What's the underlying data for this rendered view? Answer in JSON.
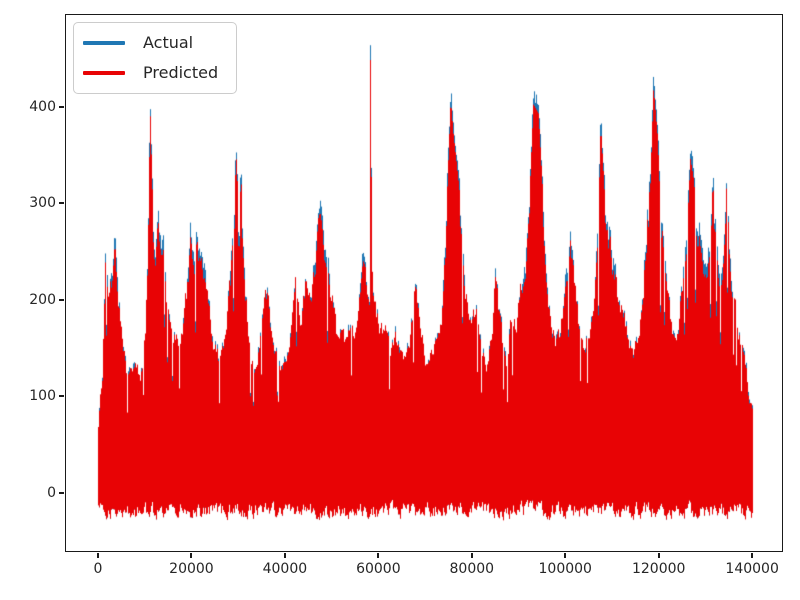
{
  "figure": {
    "background": "#ffffff",
    "text_color": "#262626",
    "spine_color": "#1a1a1a"
  },
  "legend": {
    "position": "upper left",
    "entries": [
      {
        "label": "Actual",
        "color": "#1f77b4",
        "sample": "line"
      },
      {
        "label": "Predicted",
        "color": "#e80305",
        "sample": "line"
      }
    ]
  },
  "chart_data": {
    "type": "line",
    "title": "",
    "xlabel": "",
    "ylabel": "",
    "grid": false,
    "legend_position": "upper left",
    "xlim": [
      -7060,
      146600
    ],
    "ylim": [
      -61,
      496
    ],
    "x_range": [
      0,
      140000
    ],
    "x_ticks": [
      0,
      20000,
      40000,
      60000,
      80000,
      100000,
      120000,
      140000
    ],
    "x_tick_labels": [
      "0",
      "20000",
      "40000",
      "60000",
      "80000",
      "100000",
      "120000",
      "140000"
    ],
    "y_ticks": [
      0,
      100,
      200,
      300,
      400
    ],
    "y_tick_labels": [
      "0",
      "100",
      "200",
      "300",
      "400"
    ],
    "series": [
      {
        "name": "Actual",
        "color": "#1f77b4",
        "role": "actual",
        "description": "dense noisy series; visible as thin tips above Predicted at peaks",
        "peak_excess_range": [
          5,
          16
        ],
        "shoulder_excess_range": [
          2,
          6
        ]
      },
      {
        "name": "Predicted",
        "color": "#e80305",
        "role": "predicted",
        "description": "dense noisy series overlaying Actual almost everywhere"
      }
    ],
    "noise_floor_range": [
      -32,
      -4
    ],
    "envelope_upper": [
      [
        0,
        75
      ],
      [
        400,
        112
      ],
      [
        900,
        132
      ],
      [
        1500,
        271
      ],
      [
        2200,
        222
      ],
      [
        3000,
        252
      ],
      [
        3600,
        277
      ],
      [
        4200,
        232
      ],
      [
        5000,
        182
      ],
      [
        6000,
        142
      ],
      [
        7000,
        136
      ],
      [
        8000,
        152
      ],
      [
        9000,
        133
      ],
      [
        10000,
        172
      ],
      [
        10700,
        300
      ],
      [
        11100,
        408
      ],
      [
        11500,
        332
      ],
      [
        12100,
        252
      ],
      [
        12800,
        295
      ],
      [
        13500,
        268
      ],
      [
        13900,
        290
      ],
      [
        14800,
        212
      ],
      [
        16000,
        178
      ],
      [
        17000,
        172
      ],
      [
        18000,
        196
      ],
      [
        19000,
        236
      ],
      [
        19700,
        282
      ],
      [
        20400,
        240
      ],
      [
        21200,
        285
      ],
      [
        22000,
        258
      ],
      [
        22900,
        250
      ],
      [
        23800,
        206
      ],
      [
        24800,
        166
      ],
      [
        26000,
        150
      ],
      [
        27000,
        178
      ],
      [
        28200,
        236
      ],
      [
        29000,
        302
      ],
      [
        29500,
        360
      ],
      [
        30000,
        306
      ],
      [
        30600,
        330
      ],
      [
        31500,
        236
      ],
      [
        32500,
        152
      ],
      [
        33500,
        146
      ],
      [
        34500,
        163
      ],
      [
        35700,
        237
      ],
      [
        36500,
        215
      ],
      [
        37500,
        158
      ],
      [
        39000,
        148
      ],
      [
        40500,
        152
      ],
      [
        41500,
        196
      ],
      [
        42400,
        245
      ],
      [
        43300,
        206
      ],
      [
        44300,
        240
      ],
      [
        45500,
        216
      ],
      [
        46300,
        256
      ],
      [
        47100,
        298
      ],
      [
        47900,
        305
      ],
      [
        48800,
        262
      ],
      [
        50000,
        226
      ],
      [
        51000,
        184
      ],
      [
        52000,
        186
      ],
      [
        53000,
        170
      ],
      [
        53900,
        186
      ],
      [
        55000,
        178
      ],
      [
        56500,
        265
      ],
      [
        57300,
        238
      ],
      [
        58000,
        206
      ],
      [
        58200,
        470
      ],
      [
        58600,
        236
      ],
      [
        59500,
        206
      ],
      [
        60500,
        186
      ],
      [
        61400,
        188
      ],
      [
        62500,
        156
      ],
      [
        63500,
        182
      ],
      [
        64500,
        158
      ],
      [
        65500,
        152
      ],
      [
        66500,
        164
      ],
      [
        67800,
        240
      ],
      [
        68800,
        196
      ],
      [
        70000,
        152
      ],
      [
        71500,
        162
      ],
      [
        72500,
        188
      ],
      [
        73500,
        212
      ],
      [
        74500,
        302
      ],
      [
        75400,
        420
      ],
      [
        76000,
        382
      ],
      [
        76600,
        355
      ],
      [
        77500,
        312
      ],
      [
        78500,
        236
      ],
      [
        79500,
        188
      ],
      [
        80800,
        212
      ],
      [
        82000,
        176
      ],
      [
        83200,
        148
      ],
      [
        84300,
        182
      ],
      [
        85000,
        250
      ],
      [
        85700,
        206
      ],
      [
        86500,
        172
      ],
      [
        87500,
        146
      ],
      [
        88200,
        206
      ],
      [
        89500,
        186
      ],
      [
        90500,
        236
      ],
      [
        91500,
        262
      ],
      [
        92400,
        332
      ],
      [
        93100,
        415
      ],
      [
        94200,
        405
      ],
      [
        95000,
        332
      ],
      [
        95800,
        262
      ],
      [
        96800,
        206
      ],
      [
        97800,
        172
      ],
      [
        98800,
        182
      ],
      [
        99800,
        236
      ],
      [
        101000,
        287
      ],
      [
        101800,
        242
      ],
      [
        102800,
        196
      ],
      [
        103800,
        168
      ],
      [
        104800,
        182
      ],
      [
        105800,
        206
      ],
      [
        106500,
        246
      ],
      [
        107100,
        312
      ],
      [
        107500,
        394
      ],
      [
        108100,
        342
      ],
      [
        108700,
        286
      ],
      [
        109500,
        277
      ],
      [
        110500,
        250
      ],
      [
        111500,
        208
      ],
      [
        112500,
        205
      ],
      [
        113500,
        178
      ],
      [
        114500,
        162
      ],
      [
        115500,
        172
      ],
      [
        116500,
        216
      ],
      [
        117500,
        312
      ],
      [
        118100,
        325
      ],
      [
        118800,
        433
      ],
      [
        119700,
        380
      ],
      [
        120300,
        302
      ],
      [
        121000,
        290
      ],
      [
        122000,
        222
      ],
      [
        123000,
        180
      ],
      [
        124000,
        188
      ],
      [
        125000,
        232
      ],
      [
        126000,
        282
      ],
      [
        126700,
        357
      ],
      [
        127400,
        335
      ],
      [
        128000,
        302
      ],
      [
        128900,
        299
      ],
      [
        129800,
        242
      ],
      [
        130600,
        262
      ],
      [
        131500,
        328
      ],
      [
        132100,
        302
      ],
      [
        132800,
        242
      ],
      [
        133300,
        252
      ],
      [
        134000,
        282
      ],
      [
        134400,
        325
      ],
      [
        135000,
        282
      ],
      [
        135600,
        232
      ],
      [
        136400,
        216
      ],
      [
        137000,
        182
      ],
      [
        137800,
        172
      ],
      [
        138500,
        152
      ],
      [
        139200,
        115
      ],
      [
        140000,
        95
      ]
    ]
  }
}
